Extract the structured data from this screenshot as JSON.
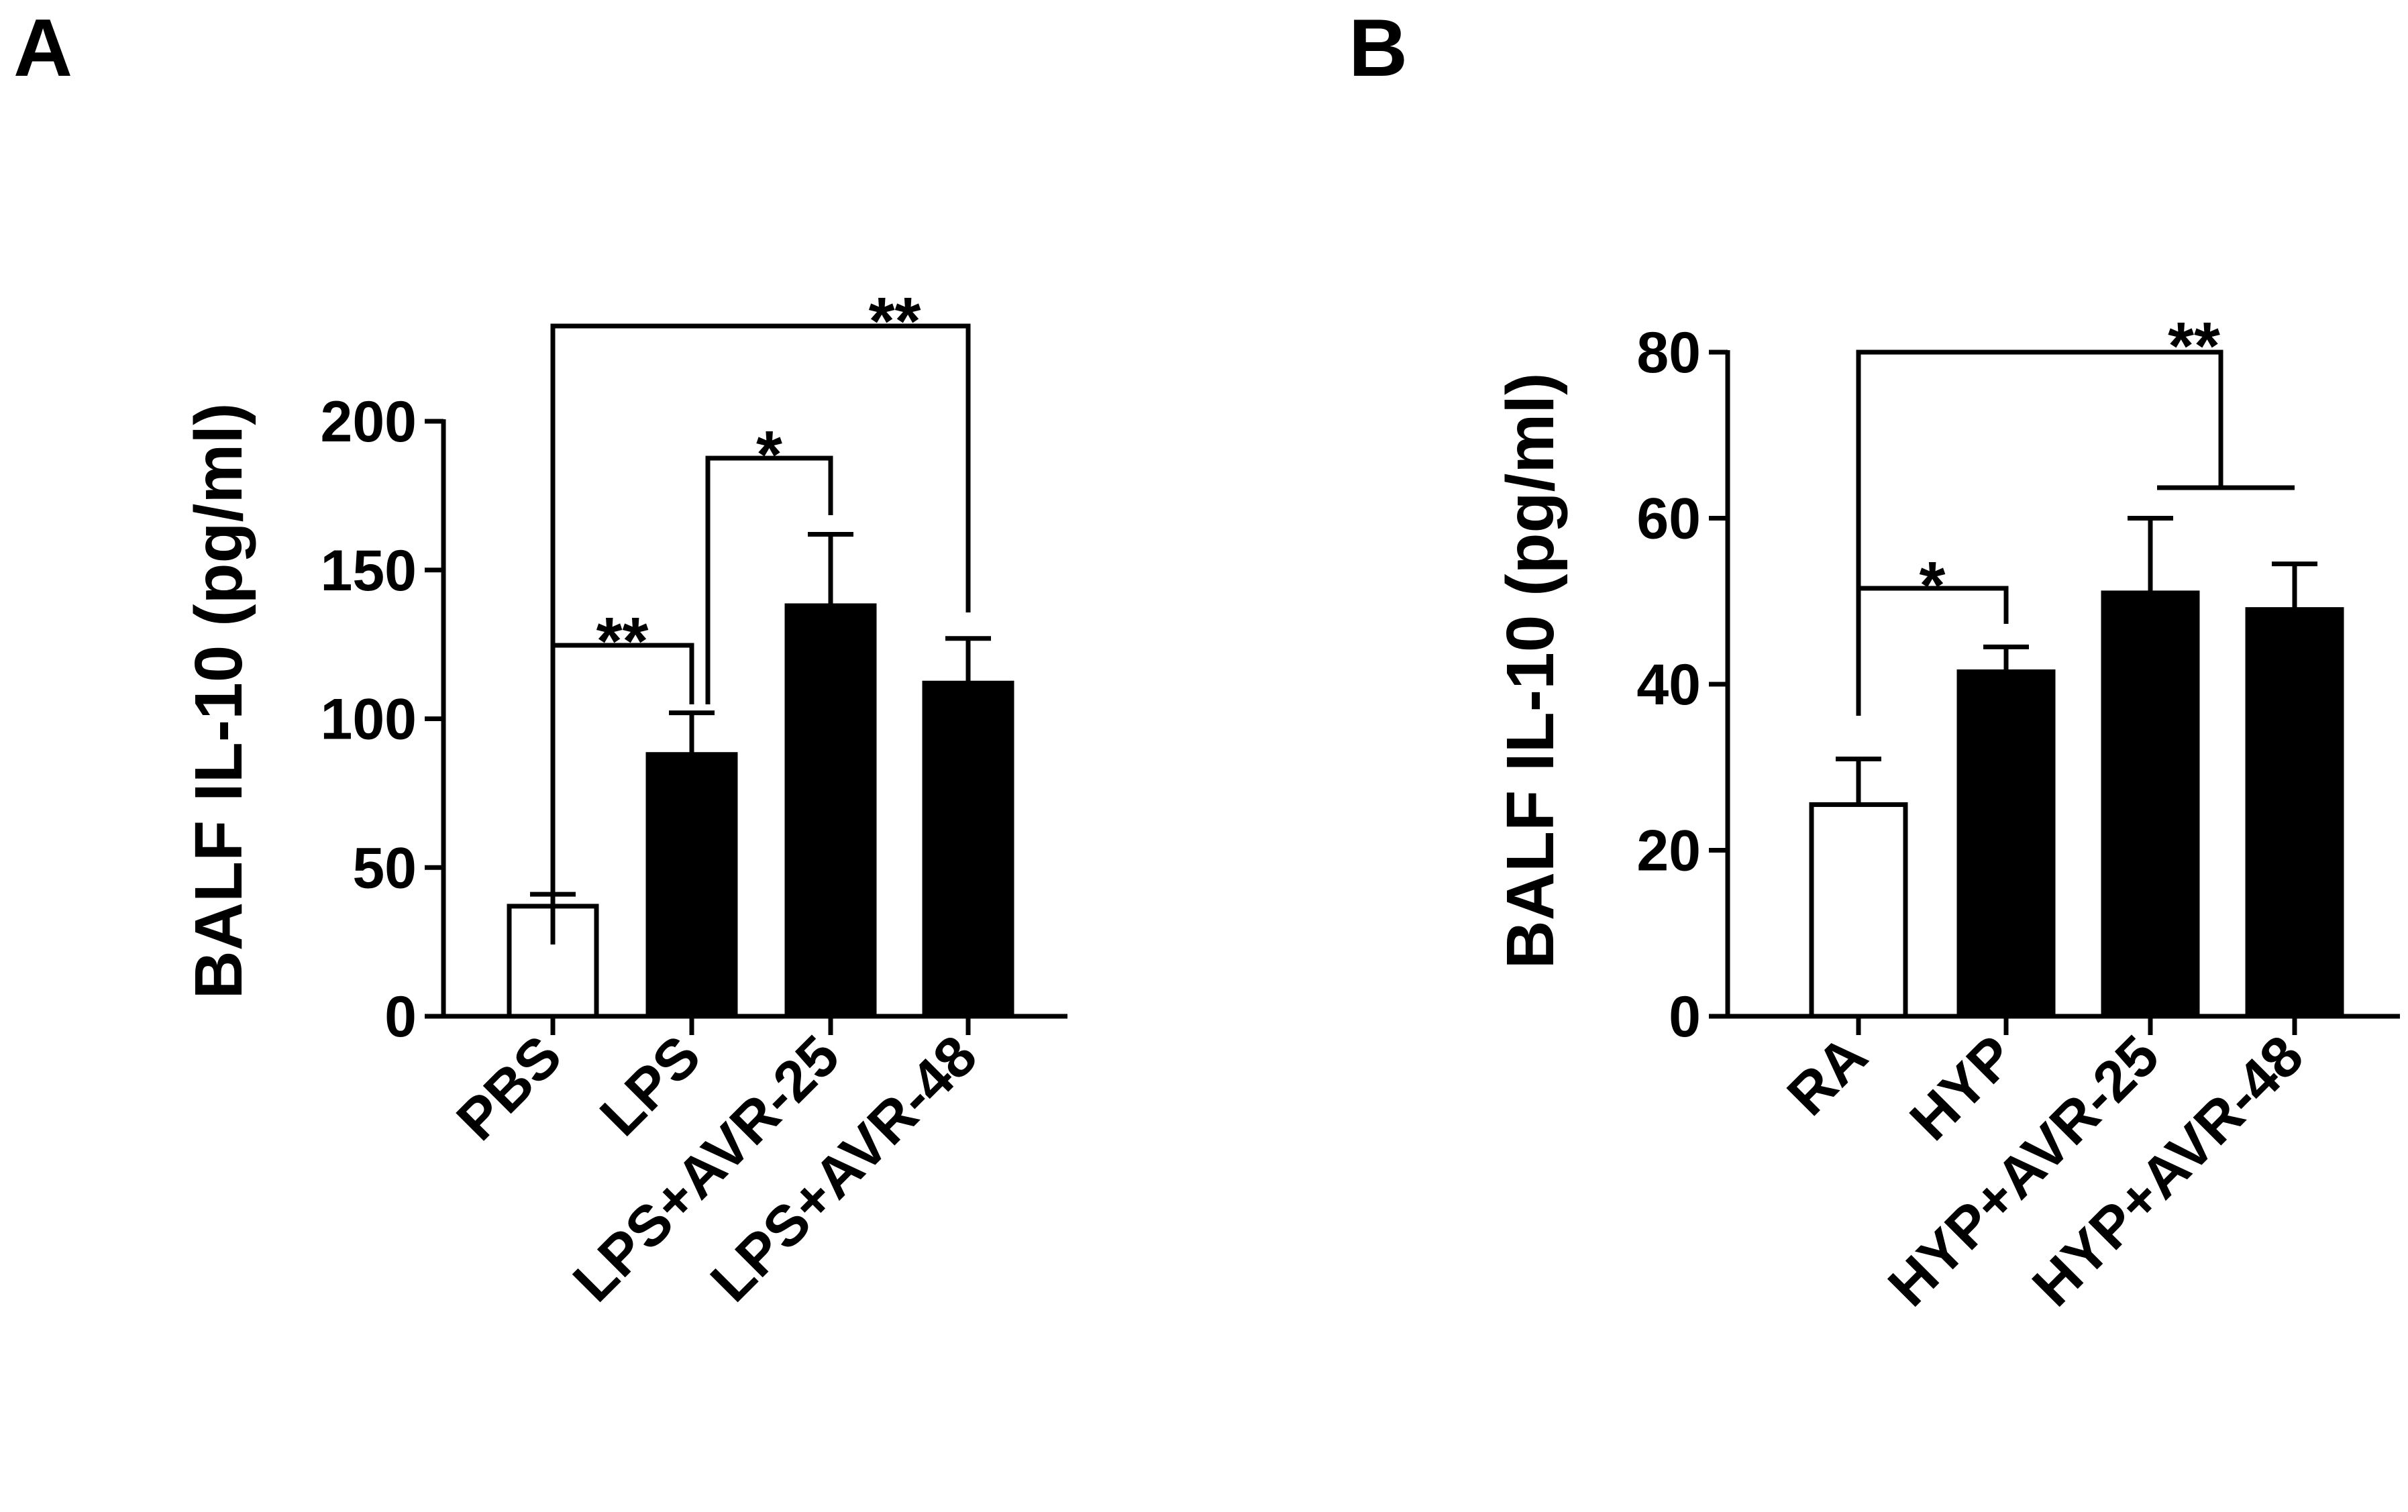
{
  "panels": [
    {
      "letter": "A"
    },
    {
      "letter": "B"
    }
  ],
  "chart_data": [
    {
      "type": "bar",
      "panel": "A",
      "title": "",
      "xlabel": "",
      "ylabel": "BALF IL-10 (pg/ml)",
      "ylim": [
        0,
        200
      ],
      "yticks": [
        0,
        50,
        100,
        150,
        200
      ],
      "categories": [
        "PBS",
        "LPS",
        "LPS+AVR-25",
        "LPS+AVR-48"
      ],
      "values": [
        37,
        88,
        138,
        112
      ],
      "errors": [
        4,
        14,
        24,
        15
      ],
      "fills": [
        "#ffffff",
        "#000000",
        "#000000",
        "#000000"
      ],
      "significance": [
        {
          "from": 0,
          "to": 1,
          "label": "**"
        },
        {
          "from": 1,
          "to": 2,
          "label": "*"
        },
        {
          "from": 0,
          "to": 3,
          "label": "**"
        }
      ]
    },
    {
      "type": "bar",
      "panel": "B",
      "title": "",
      "xlabel": "",
      "ylabel": "BALF IL-10 (pg/ml)",
      "ylim": [
        0,
        80
      ],
      "yticks": [
        0,
        20,
        40,
        60,
        80
      ],
      "categories": [
        "RA",
        "HYP",
        "HYP+AVR-25",
        "HYP+AVR-48"
      ],
      "values": [
        25.5,
        41.5,
        51,
        49
      ],
      "errors": [
        5.5,
        3,
        9,
        5.5
      ],
      "fills": [
        "#ffffff",
        "#000000",
        "#000000",
        "#000000"
      ],
      "significance": [
        {
          "from": 0,
          "to": 1,
          "label": "*"
        },
        {
          "from": 0,
          "to": [
            2,
            3
          ],
          "label": "**"
        }
      ]
    }
  ]
}
